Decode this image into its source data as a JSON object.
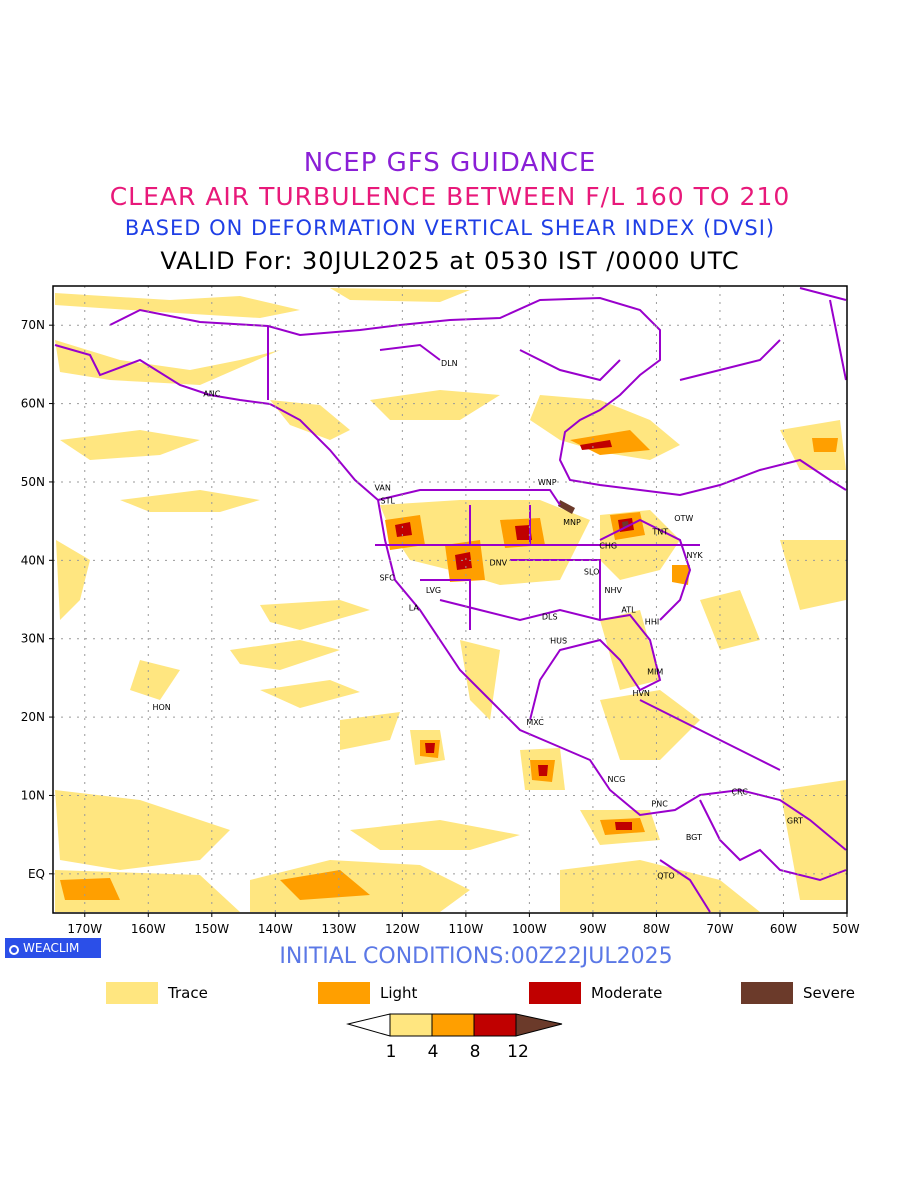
{
  "titles": {
    "line1": "NCEP GFS GUIDANCE",
    "line2": "CLEAR AIR TURBULENCE BETWEEN F/L 160 TO 210",
    "line3": "BASED ON DEFORMATION VERTICAL SHEAR INDEX (DVSI)",
    "line4": "VALID For: 30JUL2025 at 0530 IST /0000 UTC"
  },
  "map": {
    "lon_range": [
      -175,
      -50
    ],
    "lat_range": [
      -5,
      75
    ],
    "lat_labels": [
      "70N",
      "60N",
      "50N",
      "40N",
      "30N",
      "20N",
      "10N",
      "EQ"
    ],
    "lat_values": [
      70,
      60,
      50,
      40,
      30,
      20,
      10,
      0
    ],
    "lon_labels": [
      "170W",
      "160W",
      "150W",
      "140W",
      "130W",
      "120W",
      "110W",
      "100W",
      "90W",
      "80W",
      "70W",
      "60W",
      "50W"
    ],
    "lon_values": [
      -170,
      -160,
      -150,
      -140,
      -130,
      -120,
      -110,
      -100,
      -90,
      -80,
      -70,
      -60,
      -50
    ],
    "gridlines": true,
    "coastline_color": "#9900cc",
    "stations": [
      {
        "code": "ANC",
        "lon": -150.0,
        "lat": 61.3
      },
      {
        "code": "DLN",
        "lon": -112.6,
        "lat": 65.2
      },
      {
        "code": "VAN",
        "lon": -123.1,
        "lat": 49.3
      },
      {
        "code": "STL",
        "lon": -122.3,
        "lat": 47.6
      },
      {
        "code": "WNP",
        "lon": -97.2,
        "lat": 50.0
      },
      {
        "code": "MNP",
        "lon": -93.3,
        "lat": 44.9
      },
      {
        "code": "TNT",
        "lon": -79.4,
        "lat": 43.7
      },
      {
        "code": "OTW",
        "lon": -75.7,
        "lat": 45.4
      },
      {
        "code": "CHG",
        "lon": -87.6,
        "lat": 41.9
      },
      {
        "code": "NYK",
        "lon": -74.0,
        "lat": 40.7
      },
      {
        "code": "DNV",
        "lon": -104.9,
        "lat": 39.7
      },
      {
        "code": "SFC",
        "lon": -122.4,
        "lat": 37.8
      },
      {
        "code": "LVG",
        "lon": -115.1,
        "lat": 36.2
      },
      {
        "code": "SLO",
        "lon": -90.2,
        "lat": 38.6
      },
      {
        "code": "NHV",
        "lon": -86.8,
        "lat": 36.2
      },
      {
        "code": "LA",
        "lon": -118.2,
        "lat": 34.0
      },
      {
        "code": "ATL",
        "lon": -84.4,
        "lat": 33.7
      },
      {
        "code": "DLS",
        "lon": -96.8,
        "lat": 32.8
      },
      {
        "code": "HHI",
        "lon": -80.7,
        "lat": 32.2
      },
      {
        "code": "HUS",
        "lon": -95.4,
        "lat": 29.8
      },
      {
        "code": "MIM",
        "lon": -80.2,
        "lat": 25.8
      },
      {
        "code": "HVN",
        "lon": -82.4,
        "lat": 23.1
      },
      {
        "code": "HON",
        "lon": -157.9,
        "lat": 21.3
      },
      {
        "code": "MXC",
        "lon": -99.1,
        "lat": 19.4
      },
      {
        "code": "NCG",
        "lon": -86.3,
        "lat": 12.1
      },
      {
        "code": "CRC",
        "lon": -66.9,
        "lat": 10.5
      },
      {
        "code": "PNC",
        "lon": -79.5,
        "lat": 9.0
      },
      {
        "code": "GRT",
        "lon": -58.2,
        "lat": 6.8
      },
      {
        "code": "BGT",
        "lon": -74.1,
        "lat": 4.7
      },
      {
        "code": "QTO",
        "lon": -78.5,
        "lat": -0.2
      }
    ]
  },
  "branding": {
    "label": "WEACLIM",
    "color": "#2b4fe8"
  },
  "initial_conditions": "INITIAL CONDITIONS:00Z22JUL2025",
  "legend": [
    {
      "label": "Trace",
      "color": "#ffe680"
    },
    {
      "label": "Light",
      "color": "#ff9f00"
    },
    {
      "label": "Moderate",
      "color": "#c00000"
    },
    {
      "label": "Severe",
      "color": "#6b3a2a"
    }
  ],
  "colorbar": {
    "ticks": [
      "1",
      "4",
      "8",
      "12"
    ],
    "colors": [
      "#ffffff",
      "#ffe680",
      "#ff9f00",
      "#c00000",
      "#6b3a2a"
    ]
  }
}
